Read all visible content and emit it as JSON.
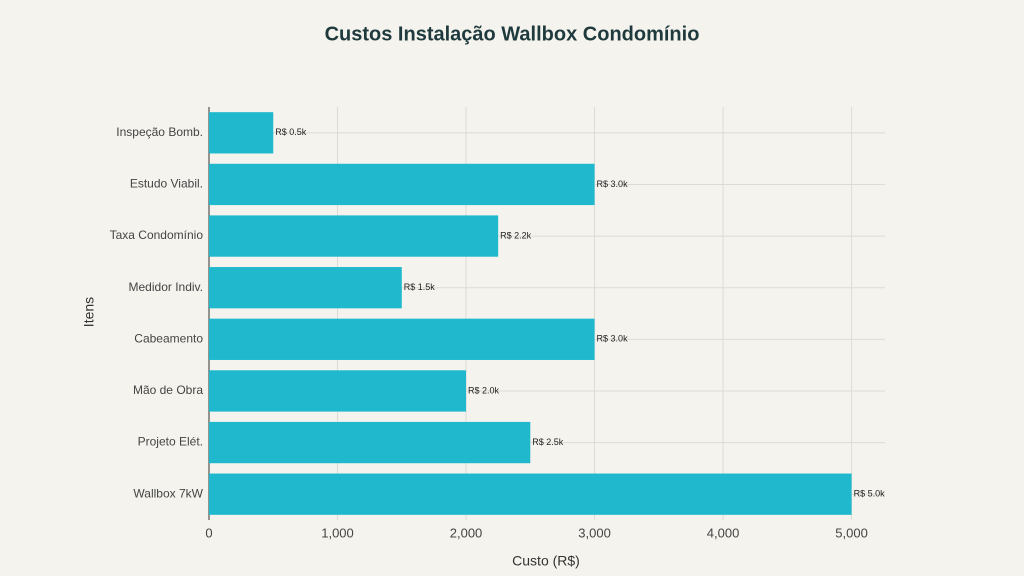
{
  "chart_data": {
    "type": "barh",
    "title": "Custos Instalação Wallbox Condomínio",
    "x_label": "Custo (R$)",
    "y_label": "Itens",
    "categories": [
      "Inspeção Bomb.",
      "Estudo Viabil.",
      "Taxa Condomínio",
      "Medidor Indiv.",
      "Cabeamento",
      "Mão de Obra",
      "Projeto Elét.",
      "Wallbox 7kW"
    ],
    "values": [
      500,
      3000,
      2250,
      1500,
      3000,
      2000,
      2500,
      5000
    ],
    "value_labels": [
      "R$ 0.5k",
      "R$ 3.0k",
      "R$ 2.2k",
      "R$ 1.5k",
      "R$ 3.0k",
      "R$ 2.0k",
      "R$ 2.5k",
      "R$ 5.0k"
    ],
    "color": "#1fb8cd",
    "xlim": [
      0,
      5260
    ],
    "xticks": [
      0,
      {
        "value": 1000,
        "label": "1,000"
      },
      {
        "value": 2000,
        "label": "2,000"
      },
      {
        "value": 3000,
        "label": "3,000"
      },
      {
        "value": 4000,
        "label": "4,000"
      },
      {
        "value": 5000,
        "label": "5,000"
      }
    ],
    "grid": true
  }
}
